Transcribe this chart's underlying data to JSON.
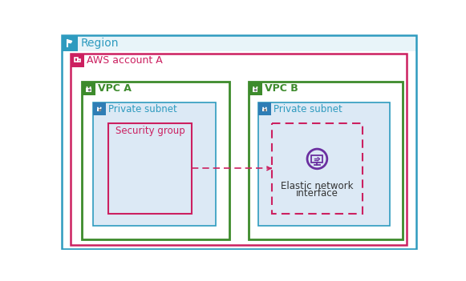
{
  "bg_color": "#ffffff",
  "region_border_color": "#2e9bbf",
  "region_bg_color": "#e8f4f9",
  "region_text": "Region",
  "region_text_color": "#2e9bbf",
  "account_border_color": "#cc2060",
  "account_text": "AWS account A",
  "account_text_color": "#cc2060",
  "vpc_border_color": "#3d8b2c",
  "vpc_a_text": "VPC A",
  "vpc_b_text": "VPC B",
  "vpc_text_color": "#3d8b2c",
  "vpc_icon_bg": "#3d8b2c",
  "subnet_bg_color": "#dce9f5",
  "subnet_border_color": "#2e9bbf",
  "subnet_text": "Private subnet",
  "subnet_text_color": "#2e9bbf",
  "subnet_icon_bg": "#2e7db5",
  "security_group_border_color": "#cc2060",
  "security_group_text": "Security group",
  "security_group_text_color": "#cc2060",
  "eni_border_color": "#cc2060",
  "eni_text_line1": "Elastic network",
  "eni_text_line2": "interface",
  "eni_text_color": "#333333",
  "eni_icon_color": "#6b2fa0",
  "arrow_color": "#cc2060",
  "region_icon_bg": "#2e9bbf",
  "account_icon_bg": "#cc2060"
}
